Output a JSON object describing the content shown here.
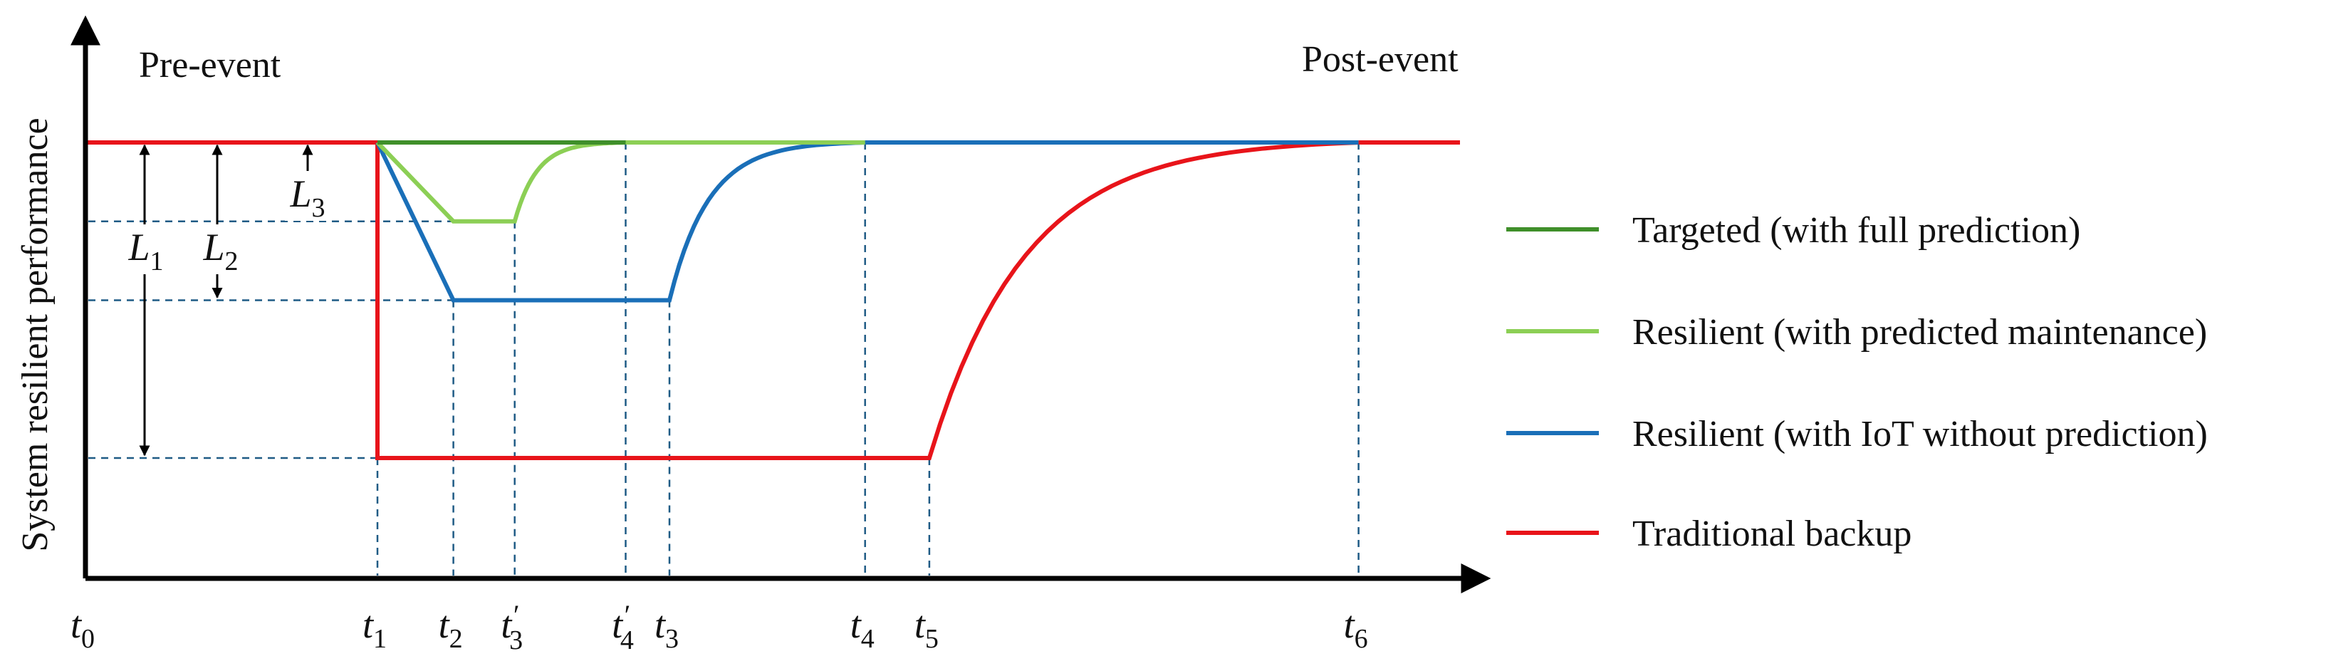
{
  "ylabel": "System resilient performance",
  "phase_labels": {
    "pre": "Pre-event",
    "post": "Post-event"
  },
  "time_marks": [
    {
      "id": "t0",
      "base": "t",
      "sub": "0",
      "prime": false,
      "t": 0
    },
    {
      "id": "t1",
      "base": "t",
      "sub": "1",
      "prime": false,
      "t": 1
    },
    {
      "id": "t2",
      "base": "t",
      "sub": "2",
      "prime": false,
      "t": 1.26
    },
    {
      "id": "t3p",
      "base": "t",
      "sub": "3",
      "prime": true,
      "t": 1.47
    },
    {
      "id": "t4p",
      "base": "t",
      "sub": "4",
      "prime": true,
      "t": 1.85
    },
    {
      "id": "t3",
      "base": "t",
      "sub": "3",
      "prime": false,
      "t": 2.0
    },
    {
      "id": "t4",
      "base": "t",
      "sub": "4",
      "prime": false,
      "t": 2.67
    },
    {
      "id": "t5",
      "base": "t",
      "sub": "5",
      "prime": false,
      "t": 2.89
    },
    {
      "id": "t6",
      "base": "t",
      "sub": "6",
      "prime": false,
      "t": 4.36
    }
  ],
  "loss_labels": [
    {
      "id": "L1",
      "base": "L",
      "sub": "1",
      "level": 0.0
    },
    {
      "id": "L2",
      "base": "L",
      "sub": "2",
      "level": 0.63
    },
    {
      "id": "L3",
      "base": "L",
      "sub": "3",
      "level": 0.75
    }
  ],
  "levels": {
    "normal": 1.0,
    "green_min": 0.75,
    "blue_min": 0.5,
    "red_min": 0.0
  },
  "legend": [
    {
      "id": "targeted",
      "label": "Targeted (with full prediction)",
      "color": "#3f8f2a"
    },
    {
      "id": "predicted",
      "label": "Resilient (with predicted maintenance)",
      "color": "#8ccf55"
    },
    {
      "id": "iot",
      "label": "Resilient (with IoT without prediction)",
      "color": "#1a6fb8"
    },
    {
      "id": "traditional",
      "label": "Traditional backup",
      "color": "#e8141a"
    }
  ],
  "colors": {
    "axis": "#000000",
    "guide": "#1f5b85"
  }
}
